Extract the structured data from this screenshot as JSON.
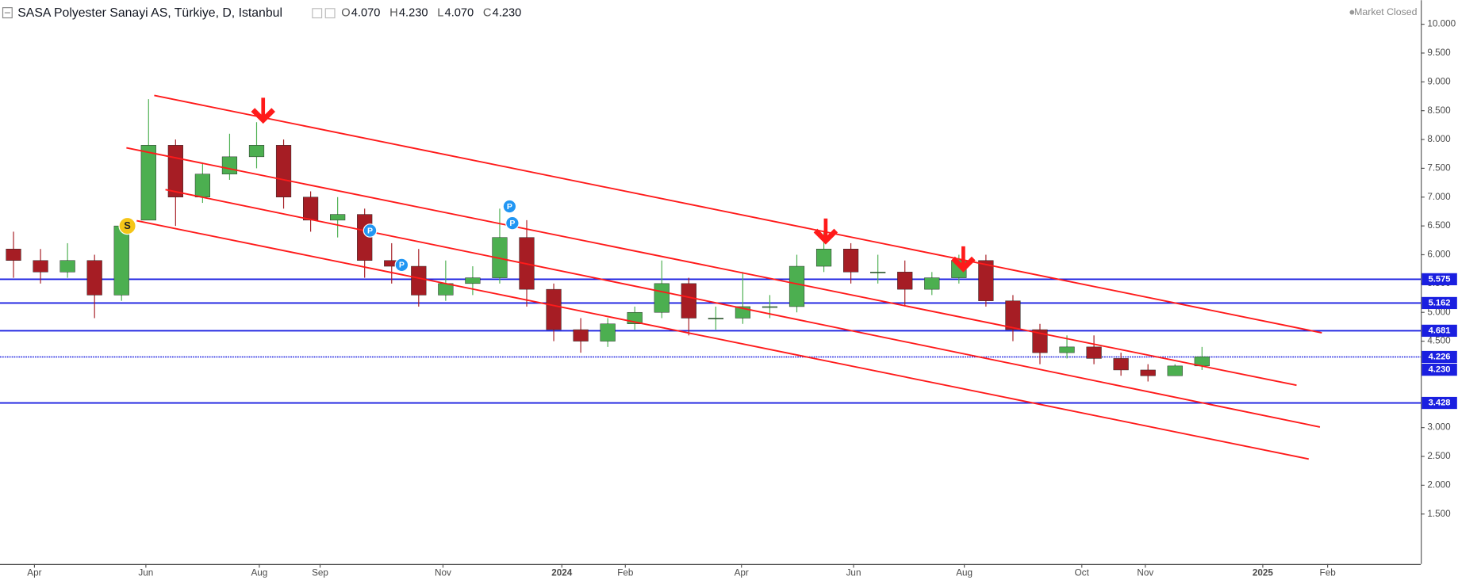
{
  "chart_data": {
    "type": "candlestick",
    "title": "SASA Polyester Sanayi AS, Türkiye, D, Istanbul",
    "ohlc_legend": [
      {
        "key": "O",
        "value": "4.070"
      },
      {
        "key": "H",
        "value": "4.230"
      },
      {
        "key": "L",
        "value": "4.070"
      },
      {
        "key": "C",
        "value": "4.230"
      }
    ],
    "status": "Market Closed",
    "x": [
      1,
      3,
      5,
      7,
      9,
      11,
      13,
      15,
      17,
      19,
      21,
      23,
      25,
      27,
      29,
      31,
      33,
      35,
      37,
      39,
      41,
      43,
      45,
      47,
      49,
      51,
      53,
      55,
      57,
      59,
      61,
      63,
      65,
      67,
      69,
      71,
      73,
      75,
      77,
      79,
      81,
      83,
      85,
      87,
      89
    ],
    "open": [
      6.1,
      5.9,
      5.7,
      5.9,
      5.3,
      6.6,
      7.9,
      7.0,
      7.4,
      7.7,
      7.9,
      7.0,
      6.6,
      6.7,
      5.9,
      5.8,
      5.3,
      5.5,
      5.6,
      6.3,
      5.4,
      4.7,
      4.5,
      4.8,
      5.0,
      5.5,
      4.9,
      4.9,
      5.1,
      5.1,
      5.8,
      6.1,
      5.7,
      5.7,
      5.4,
      5.6,
      5.9,
      5.2,
      4.7,
      4.3,
      4.4,
      4.2,
      4.0,
      3.9,
      4.07
    ],
    "high": [
      6.4,
      6.1,
      6.2,
      6.0,
      6.5,
      8.7,
      8.0,
      7.6,
      8.1,
      8.3,
      8.0,
      7.1,
      7.0,
      6.8,
      6.2,
      6.1,
      5.9,
      5.8,
      6.8,
      6.6,
      5.5,
      4.9,
      4.9,
      5.1,
      5.9,
      5.6,
      5.1,
      5.7,
      5.3,
      6.0,
      6.4,
      6.2,
      6.0,
      5.9,
      5.7,
      6.0,
      6.0,
      5.3,
      4.8,
      4.6,
      4.6,
      4.3,
      4.1,
      4.1,
      4.4
    ],
    "low": [
      5.6,
      5.5,
      5.6,
      4.9,
      5.2,
      6.6,
      6.5,
      6.9,
      7.3,
      7.5,
      6.8,
      6.4,
      6.3,
      5.6,
      5.5,
      5.1,
      5.2,
      5.3,
      5.5,
      5.1,
      4.5,
      4.3,
      4.4,
      4.7,
      4.9,
      4.6,
      4.7,
      4.8,
      4.9,
      5.0,
      5.7,
      5.5,
      5.5,
      5.1,
      5.3,
      5.5,
      5.1,
      4.5,
      4.1,
      4.2,
      4.1,
      3.9,
      3.8,
      3.9,
      4.0
    ],
    "close": [
      5.9,
      5.7,
      5.9,
      5.3,
      6.5,
      7.9,
      7.0,
      7.4,
      7.7,
      7.9,
      7.0,
      6.6,
      6.7,
      5.9,
      5.8,
      5.3,
      5.5,
      5.6,
      6.3,
      5.4,
      4.7,
      4.5,
      4.8,
      5.0,
      5.5,
      4.9,
      4.9,
      5.1,
      5.1,
      5.8,
      6.1,
      5.7,
      5.7,
      5.4,
      5.6,
      5.9,
      5.2,
      4.7,
      4.3,
      4.4,
      4.2,
      4.0,
      3.9,
      4.07,
      4.23
    ],
    "up_color": "#4caf50",
    "down_color": "#a61d24",
    "xlim": [
      0,
      105.2
    ],
    "xticks": [
      {
        "value": 2.55,
        "label": "Apr"
      },
      {
        "value": 10.8,
        "label": "Jun"
      },
      {
        "value": 19.2,
        "label": "Aug"
      },
      {
        "value": 23.7,
        "label": "Sep"
      },
      {
        "value": 32.8,
        "label": "Nov"
      },
      {
        "value": 41.6,
        "label": "2024"
      },
      {
        "value": 46.3,
        "label": "Feb"
      },
      {
        "value": 54.9,
        "label": "Apr"
      },
      {
        "value": 63.2,
        "label": "Jun"
      },
      {
        "value": 71.4,
        "label": "Aug"
      },
      {
        "value": 80.1,
        "label": "Oct"
      },
      {
        "value": 84.8,
        "label": "Nov"
      },
      {
        "value": 93.5,
        "label": "2025"
      },
      {
        "value": 98.3,
        "label": "Feb"
      }
    ],
    "ylim": [
      0.633,
      10.417
    ],
    "yticks": [
      {
        "value": 10,
        "label": "10.000"
      },
      {
        "value": 9.5,
        "label": "9.500"
      },
      {
        "value": 9,
        "label": "9.000"
      },
      {
        "value": 8.5,
        "label": "8.500"
      },
      {
        "value": 8,
        "label": "8.000"
      },
      {
        "value": 7.5,
        "label": "7.500"
      },
      {
        "value": 7,
        "label": "7.000"
      },
      {
        "value": 6.5,
        "label": "6.500"
      },
      {
        "value": 6,
        "label": "6.000"
      },
      {
        "value": 5.5,
        "label": "5.500"
      },
      {
        "value": 5,
        "label": "5.000"
      },
      {
        "value": 4.5,
        "label": "4.500"
      },
      {
        "value": 3,
        "label": "3.000"
      },
      {
        "value": 2.5,
        "label": "2.500"
      },
      {
        "value": 2,
        "label": "2.000"
      },
      {
        "value": 1.5,
        "label": "1.500"
      }
    ],
    "grid": false,
    "trendline_color": "#ff1a1a",
    "trendlines": [
      {
        "x": [
          11.42,
          97.87
        ],
        "y": [
          8.765,
          4.645
        ]
      },
      {
        "x": [
          9.36,
          96.0
        ],
        "y": [
          7.855,
          3.735
        ]
      },
      {
        "x": [
          12.25,
          97.73
        ],
        "y": [
          7.13,
          3.01
        ]
      },
      {
        "x": [
          10.12,
          96.9
        ],
        "y": [
          6.59,
          2.455
        ]
      }
    ],
    "hline_color": "#1a1fe0",
    "hlines": [
      {
        "value": 5.575,
        "label": "5.575"
      },
      {
        "value": 5.162,
        "label": "5.162"
      },
      {
        "value": 4.681,
        "label": "4.681"
      },
      {
        "value": 4.226,
        "label": "4.226",
        "dotted": true
      },
      {
        "value": 3.428,
        "label": "3.428"
      }
    ],
    "last_price": {
      "value": 4.23,
      "label": "4.230"
    },
    "markers": [
      {
        "text": "S"
      },
      {
        "text": "P"
      },
      {
        "text": "P"
      },
      {
        "text": "P"
      },
      {
        "text": "P"
      }
    ]
  }
}
